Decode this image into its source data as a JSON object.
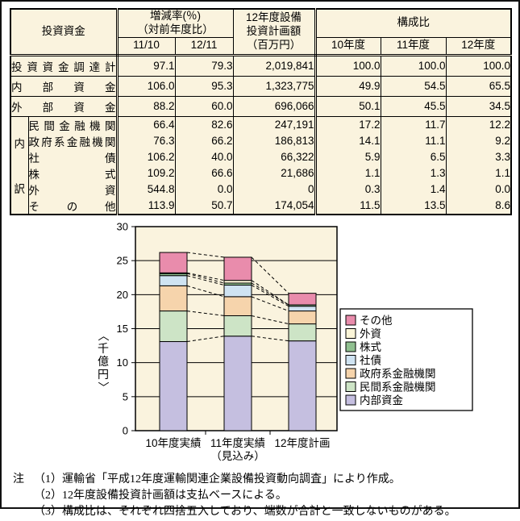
{
  "colors": {
    "panel_bg": "#faf3de",
    "border": "#000000"
  },
  "table": {
    "header": {
      "funds": "投資資金",
      "change_rate_line1": "増減率(％)",
      "change_rate_line2": "（対前年度比）",
      "change_cols": [
        "11/10",
        "12/11"
      ],
      "plan_line1": "12年度設備",
      "plan_line2": "投資計画額",
      "plan_line3": "（百万円）",
      "composition": "構成比",
      "comp_cols": [
        "10年度",
        "11年度",
        "12年度"
      ]
    },
    "main_rows": [
      {
        "label": "投資資金調達計",
        "values": [
          "97.1",
          "79.3",
          "2,019,841",
          "100.0",
          "100.0",
          "100.0"
        ]
      },
      {
        "label": "内部資金",
        "values": [
          "106.0",
          "95.3",
          "1,323,775",
          "49.9",
          "54.5",
          "65.5"
        ]
      },
      {
        "label": "外部資金",
        "values": [
          "88.2",
          "60.0",
          "696,066",
          "50.1",
          "45.5",
          "34.5"
        ]
      }
    ],
    "breakdown_label": "内訳",
    "breakdown_rows": [
      {
        "label": "民間金融機関",
        "values": [
          "66.4",
          "82.6",
          "247,191",
          "17.2",
          "11.7",
          "12.2"
        ]
      },
      {
        "label": "政府系金融機関",
        "values": [
          "76.3",
          "66.2",
          "186,813",
          "14.1",
          "11.1",
          "9.2"
        ]
      },
      {
        "label": "社債",
        "values": [
          "106.2",
          "40.0",
          "66,322",
          "5.9",
          "6.5",
          "3.3"
        ]
      },
      {
        "label": "株式",
        "values": [
          "109.2",
          "66.6",
          "21,686",
          "1.1",
          "1.3",
          "1.1"
        ]
      },
      {
        "label": "外資",
        "values": [
          "544.8",
          "0.0",
          "0",
          "0.3",
          "1.4",
          "0.0"
        ]
      },
      {
        "label": "その他",
        "values": [
          "113.9",
          "50.7",
          "174,054",
          "11.5",
          "13.5",
          "8.6"
        ]
      }
    ]
  },
  "chart_data": {
    "type": "bar",
    "stacked": true,
    "title": "",
    "xlabel": "",
    "ylabel": "〈千億円〉",
    "ylim": [
      0,
      30
    ],
    "yticks": [
      0,
      5,
      10,
      15,
      20,
      25,
      30
    ],
    "grid": true,
    "legend_position": "right",
    "categories": [
      {
        "line1": "10年度実績",
        "line2": ""
      },
      {
        "line1": "11年度実績",
        "line2": "（見込み）"
      },
      {
        "line1": "12年度計画",
        "line2": ""
      }
    ],
    "series": [
      {
        "name": "内部資金",
        "color": "#c5bfe0",
        "values": [
          13.1,
          13.9,
          13.2
        ]
      },
      {
        "name": "民間系金融機関",
        "color": "#cde4c6",
        "values": [
          4.5,
          3.0,
          2.5
        ]
      },
      {
        "name": "政府系金融機関",
        "color": "#f6d4ac",
        "values": [
          3.7,
          2.8,
          1.9
        ]
      },
      {
        "name": "社債",
        "color": "#cfe3f2",
        "values": [
          1.5,
          1.7,
          0.7
        ]
      },
      {
        "name": "株式",
        "color": "#90c090",
        "values": [
          0.3,
          0.3,
          0.2
        ]
      },
      {
        "name": "外資",
        "color": "#fbf5d8",
        "values": [
          0.1,
          0.4,
          0.0
        ]
      },
      {
        "name": "その他",
        "color": "#e98cac",
        "values": [
          3.0,
          3.4,
          1.7
        ]
      }
    ]
  },
  "notes": {
    "prefix": "注",
    "items": [
      "（1）運輸省「平成12年度運輸関連企業設備投資動向調査」により作成。",
      "（2）12年度設備投資計画額は支払ベースによる。",
      "（3）構成比は、それぞれ四捨五入しており、端数が合計と一致しないものがある。"
    ]
  }
}
